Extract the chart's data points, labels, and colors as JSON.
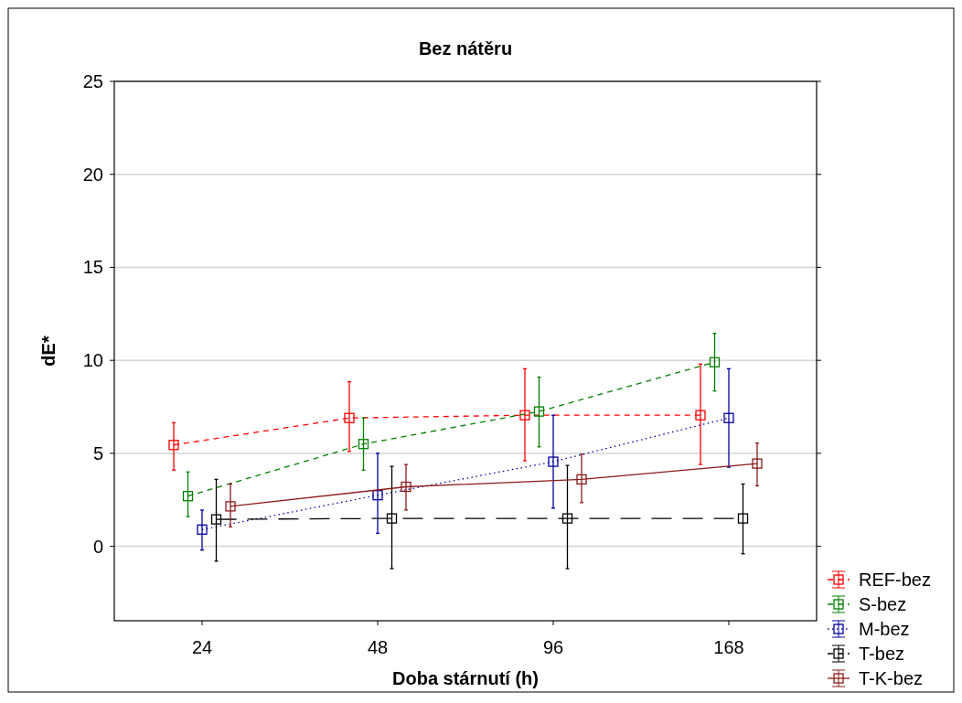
{
  "chart_data": {
    "type": "line",
    "title": "Bez nátěru",
    "xlabel": "Doba stárnutí (h)",
    "ylabel": "dE*",
    "categories": [
      "24",
      "48",
      "96",
      "168"
    ],
    "ylim": [
      -4,
      25
    ],
    "yticks": [
      0,
      5,
      10,
      15,
      20,
      25
    ],
    "grid": "y",
    "legend": "bottom right",
    "marker": "square",
    "series": [
      {
        "name": "REF-bez",
        "color": "#ff0000",
        "line_style": "dashed",
        "values": [
          5.45,
          6.9,
          7.05,
          7.05
        ],
        "errors": [
          [
            4.1,
            6.65
          ],
          [
            5.1,
            8.85
          ],
          [
            4.6,
            9.55
          ],
          [
            4.4,
            9.8
          ]
        ]
      },
      {
        "name": "S-bez",
        "color": "#008000",
        "line_style": "dashed",
        "values": [
          2.7,
          5.5,
          7.25,
          9.9
        ],
        "errors": [
          [
            1.6,
            4.0
          ],
          [
            4.1,
            6.9
          ],
          [
            5.35,
            9.1
          ],
          [
            8.35,
            11.45
          ]
        ]
      },
      {
        "name": "M-bez",
        "color": "#0000a0",
        "line_style": "dotted",
        "values": [
          0.9,
          2.75,
          4.55,
          6.9
        ],
        "errors": [
          [
            -0.2,
            1.95
          ],
          [
            0.7,
            5.0
          ],
          [
            2.05,
            7.05
          ],
          [
            4.25,
            9.55
          ]
        ]
      },
      {
        "name": "T-bez",
        "color": "#000000",
        "line_style": "dashed",
        "values": [
          1.45,
          1.5,
          1.5,
          1.5
        ],
        "errors": [
          [
            -0.8,
            3.6
          ],
          [
            -1.2,
            4.3
          ],
          [
            -1.2,
            4.35
          ],
          [
            -0.4,
            3.35
          ]
        ]
      },
      {
        "name": "T-K-bez",
        "color": "#8b1a1a",
        "line_style": "solid",
        "values": [
          2.15,
          3.2,
          3.6,
          4.45
        ],
        "errors": [
          [
            1.05,
            3.35
          ],
          [
            1.95,
            4.4
          ],
          [
            2.35,
            4.95
          ],
          [
            3.25,
            5.55
          ]
        ]
      }
    ]
  }
}
